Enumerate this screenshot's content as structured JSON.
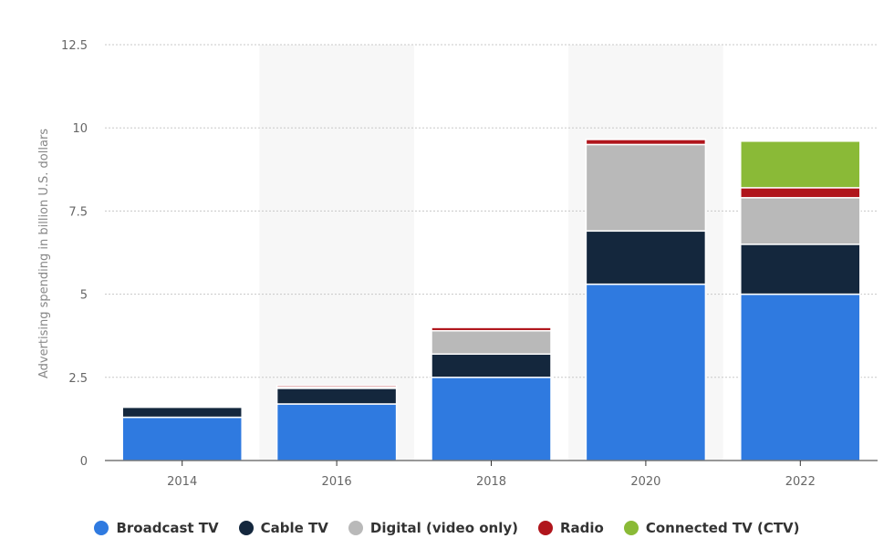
{
  "chart_data": {
    "type": "bar",
    "stacked": true,
    "categories": [
      "2014",
      "2016",
      "2018",
      "2020",
      "2022"
    ],
    "series": [
      {
        "name": "Broadcast TV",
        "color": "#2f7ae0",
        "values": [
          1.3,
          1.7,
          2.5,
          5.3,
          5.0
        ]
      },
      {
        "name": "Cable TV",
        "color": "#14273d",
        "values": [
          0.3,
          0.47,
          0.7,
          1.6,
          1.5
        ]
      },
      {
        "name": "Digital (video only)",
        "color": "#b9b9b9",
        "values": [
          0,
          0.03,
          0.7,
          2.6,
          1.4
        ]
      },
      {
        "name": "Radio",
        "color": "#b0151c",
        "values": [
          0,
          0.05,
          0.1,
          0.15,
          0.3
        ]
      },
      {
        "name": "Connected TV (CTV)",
        "color": "#8aba37",
        "values": [
          0,
          0,
          0,
          0,
          1.4
        ]
      }
    ],
    "ylabel": "Advertising spending in billion U.S. dollars",
    "xlabel": "",
    "ylim": [
      0,
      12.5
    ],
    "yticks": [
      "0",
      "2.5",
      "5",
      "7.5",
      "10",
      "12.5"
    ],
    "ytick_values": [
      0,
      2.5,
      5,
      7.5,
      10,
      12.5
    ],
    "grid": true,
    "legend_position": "bottom"
  }
}
